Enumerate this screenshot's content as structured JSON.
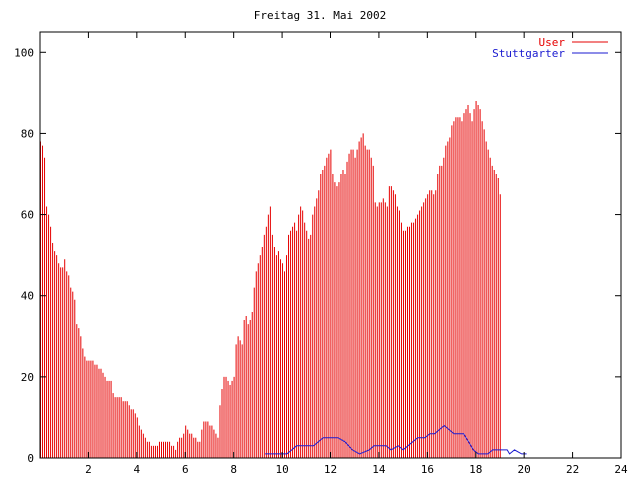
{
  "chart_data": {
    "type": "bar",
    "title": "Freitag 31. Mai 2002",
    "xlabel": "",
    "ylabel": "",
    "xlim": [
      0,
      24
    ],
    "ylim": [
      0,
      105
    ],
    "x_ticks": [
      2,
      4,
      6,
      8,
      10,
      12,
      14,
      16,
      18,
      20,
      22,
      24
    ],
    "y_ticks": [
      0,
      20,
      40,
      60,
      80,
      100
    ],
    "grid": false,
    "legend_position": "top-right",
    "sample_interval_hours": 0.0833,
    "series": [
      {
        "name": "User",
        "color": "#e60000",
        "style": "impulses",
        "values": [
          78,
          77,
          74,
          62,
          60,
          57,
          53,
          51,
          50,
          48,
          47,
          47,
          49,
          46,
          45,
          42,
          41,
          39,
          33,
          32,
          30,
          27,
          25,
          24,
          24,
          24,
          24,
          23,
          23,
          22,
          22,
          21,
          20,
          19,
          19,
          19,
          16,
          15,
          15,
          15,
          15,
          14,
          14,
          14,
          13,
          12,
          12,
          11,
          10,
          8,
          7,
          6,
          5,
          4,
          4,
          3,
          3,
          3,
          3,
          4,
          4,
          4,
          4,
          4,
          4,
          3,
          3,
          2,
          4,
          5,
          5,
          6,
          8,
          7,
          6,
          6,
          5,
          5,
          4,
          4,
          7,
          9,
          9,
          9,
          8,
          8,
          7,
          6,
          5,
          13,
          17,
          20,
          20,
          19,
          18,
          19,
          20,
          28,
          30,
          29,
          28,
          34,
          35,
          33,
          34,
          36,
          42,
          46,
          48,
          50,
          52,
          55,
          57,
          60,
          62,
          55,
          52,
          50,
          51,
          49,
          48,
          46,
          50,
          55,
          56,
          57,
          58,
          56,
          60,
          62,
          61,
          58,
          56,
          54,
          55,
          60,
          62,
          64,
          66,
          70,
          71,
          72,
          74,
          75,
          76,
          70,
          68,
          67,
          68,
          70,
          71,
          70,
          73,
          75,
          76,
          76,
          74,
          76,
          78,
          79,
          80,
          77,
          76,
          76,
          74,
          72,
          63,
          62,
          63,
          63,
          64,
          63,
          62,
          67,
          67,
          66,
          65,
          62,
          61,
          58,
          56,
          56,
          57,
          57,
          58,
          58,
          59,
          60,
          61,
          62,
          63,
          64,
          65,
          66,
          66,
          65,
          66,
          70,
          72,
          72,
          74,
          77,
          78,
          79,
          82,
          83,
          84,
          84,
          84,
          83,
          85,
          86,
          87,
          85,
          83,
          86,
          88,
          87,
          86,
          83,
          81,
          78,
          76,
          74,
          72,
          71,
          70,
          69,
          65
        ]
      },
      {
        "name": "Stuttgarter",
        "color": "#1a1ad0",
        "style": "lines",
        "points": [
          [
            9.3,
            1
          ],
          [
            10.2,
            1
          ],
          [
            10.4,
            2
          ],
          [
            10.6,
            3
          ],
          [
            11.3,
            3
          ],
          [
            11.5,
            4
          ],
          [
            11.7,
            5
          ],
          [
            12.3,
            5
          ],
          [
            12.6,
            4
          ],
          [
            12.9,
            2
          ],
          [
            13.2,
            1
          ],
          [
            13.6,
            2
          ],
          [
            13.8,
            3
          ],
          [
            14.3,
            3
          ],
          [
            14.5,
            2
          ],
          [
            14.8,
            3
          ],
          [
            15.0,
            2
          ],
          [
            15.2,
            3
          ],
          [
            15.4,
            4
          ],
          [
            15.6,
            5
          ],
          [
            15.9,
            5
          ],
          [
            16.1,
            6
          ],
          [
            16.3,
            6
          ],
          [
            16.5,
            7
          ],
          [
            16.7,
            8
          ],
          [
            16.9,
            7
          ],
          [
            17.1,
            6
          ],
          [
            17.5,
            6
          ],
          [
            17.7,
            4
          ],
          [
            17.9,
            2
          ],
          [
            18.1,
            1
          ],
          [
            18.5,
            1
          ],
          [
            18.7,
            2
          ],
          [
            19.3,
            2
          ],
          [
            19.4,
            1
          ],
          [
            19.6,
            2
          ],
          [
            19.9,
            1
          ],
          [
            20.1,
            1
          ]
        ]
      }
    ]
  }
}
